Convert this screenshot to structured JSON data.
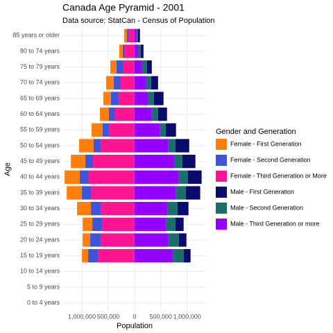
{
  "chart_data": {
    "type": "bar",
    "orientation": "horizontal",
    "stacked": true,
    "title": "Canada Age Pyramid - 2001",
    "subtitle": "Data source: StatCan - Census of Population",
    "xlabel": "Population",
    "ylabel": "Age",
    "legend_title": "Gender and Generation",
    "legend_position": "right",
    "grid": true,
    "categories": [
      "0 to 4 years",
      "5 to 9 years",
      "10 to 14 years",
      "15 to 19 years",
      "20 to 24 years",
      "25 to 29 years",
      "30 to 34 years",
      "35 to 39 years",
      "40 to 44 years",
      "45 to 49 years",
      "50 to 54 years",
      "55 to 59 years",
      "60 to 64 years",
      "65 to 69 years",
      "70 to 74 years",
      "75 to 79 years",
      "80 to 74 years",
      "85 years or older"
    ],
    "series": [
      {
        "name": "Female - First Generation",
        "color": "#ff7f0e",
        "values": [
          null,
          null,
          null,
          -118000,
          -145000,
          -184000,
          -263000,
          -289000,
          -289000,
          -276000,
          -276000,
          -210000,
          -171000,
          -145000,
          -145000,
          -118000,
          -66000,
          -53000
        ]
      },
      {
        "name": "Female - Second Generation",
        "color": "#3d54db",
        "values": [
          null,
          null,
          null,
          -184000,
          -197000,
          -184000,
          -184000,
          -171000,
          -158000,
          -145000,
          -132000,
          -118000,
          -118000,
          -145000,
          -132000,
          -132000,
          -39000,
          -39000
        ]
      },
      {
        "name": "Female - Third Generation or More",
        "color": "#ff1493",
        "values": [
          null,
          null,
          null,
          -697000,
          -645000,
          -618000,
          -645000,
          -829000,
          -882000,
          -789000,
          -645000,
          -487000,
          -368000,
          -303000,
          -263000,
          -210000,
          -184000,
          -105000
        ]
      },
      {
        "name": "Male - First Generation",
        "color": "#0b0b6e",
        "values": [
          null,
          null,
          null,
          132000,
          145000,
          158000,
          210000,
          276000,
          263000,
          250000,
          263000,
          197000,
          171000,
          184000,
          132000,
          92000,
          53000,
          39000
        ]
      },
      {
        "name": "Male - Second Generation",
        "color": "#1b6f6a",
        "values": [
          null,
          null,
          null,
          197000,
          197000,
          171000,
          184000,
          184000,
          171000,
          145000,
          132000,
          105000,
          118000,
          105000,
          92000,
          92000,
          39000,
          26000
        ]
      },
      {
        "name": "Male - Third Generation or more",
        "color": "#9400ff",
        "values": [
          null,
          null,
          null,
          737000,
          645000,
          605000,
          632000,
          789000,
          842000,
          763000,
          645000,
          487000,
          329000,
          263000,
          224000,
          145000,
          79000,
          39000
        ]
      }
    ],
    "xlim": [
      -1370000,
      1360000
    ],
    "xticks": [
      {
        "value": -1000000,
        "label": "1,000,000"
      },
      {
        "value": -500000,
        "label": "500,000"
      },
      0,
      {
        "value": 500000,
        "label": "500,000"
      },
      {
        "value": 1000000,
        "label": "1,000,000"
      }
    ]
  }
}
